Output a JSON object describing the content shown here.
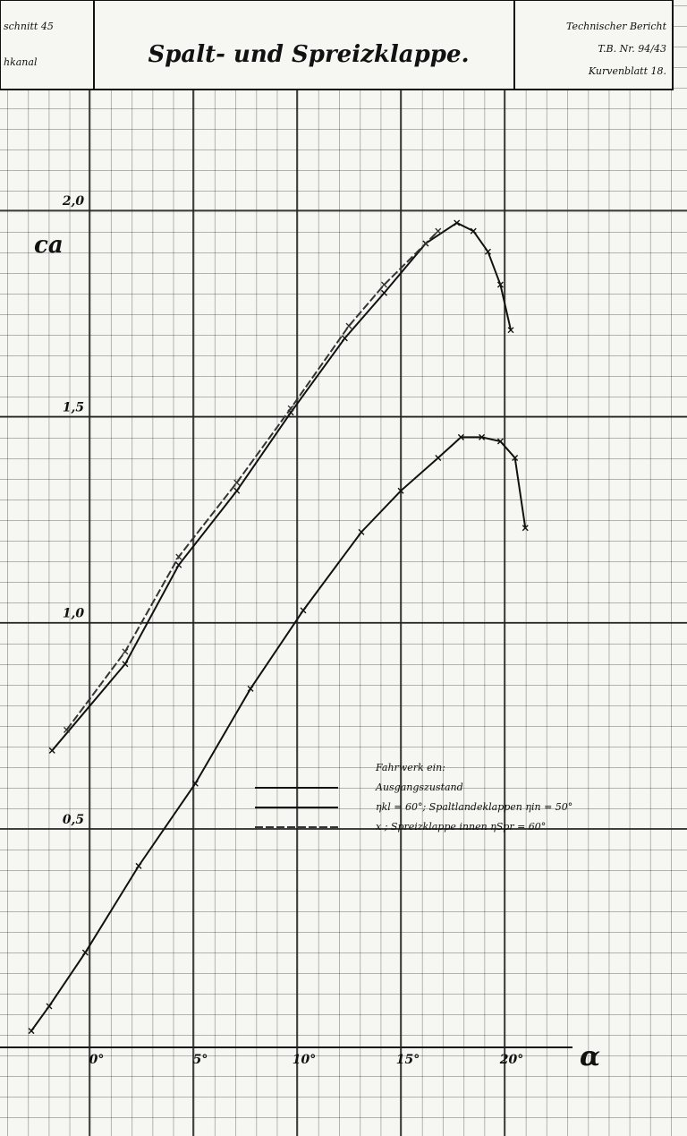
{
  "header": {
    "left": [
      "schnitt 45",
      "hkanal"
    ],
    "right": [
      "Technischer Bericht",
      "T.B. Nr. 94/43",
      "Kurvenblatt 18."
    ]
  },
  "chart_data": {
    "type": "line",
    "title": "Spalt- und Spreizklappe.",
    "y_label": "ca",
    "x_label": "α",
    "xlim": [
      -4.31,
      28.79
    ],
    "ylim": [
      -0.03,
      2.25
    ],
    "xticks": [
      {
        "value": 0,
        "label": "0°"
      },
      {
        "value": 5,
        "label": "5°"
      },
      {
        "value": 10,
        "label": "10°"
      },
      {
        "value": 15,
        "label": "15°"
      },
      {
        "value": 20,
        "label": "20°"
      }
    ],
    "yticks": [
      {
        "value": 0.5,
        "label": "0,5"
      },
      {
        "value": 1.0,
        "label": "1,0"
      },
      {
        "value": 1.5,
        "label": "1,5"
      },
      {
        "value": 2.0,
        "label": "2,0"
      }
    ],
    "grid": true,
    "legend_title": "Fahrwerk ein:",
    "series": [
      {
        "name": "Ausgangszustand",
        "color": "#111111",
        "x": [
          -2.8,
          -1.94,
          -0.2,
          2.37,
          5.1,
          7.76,
          10.3,
          13.1,
          15.0,
          16.8,
          17.9,
          18.9,
          19.8,
          20.5,
          21.0
        ],
        "values": [
          0.01,
          0.07,
          0.2,
          0.41,
          0.61,
          0.84,
          1.03,
          1.22,
          1.32,
          1.4,
          1.45,
          1.45,
          1.44,
          1.4,
          1.23
        ]
      },
      {
        "name": "ηkl = 60°; Spaltlandeklappen ηin = 50°",
        "color": "#111111",
        "x": [
          -1.8,
          1.72,
          4.3,
          7.1,
          9.7,
          12.3,
          14.2,
          16.2,
          17.7,
          18.5,
          19.2,
          19.8,
          20.3
        ],
        "values": [
          0.69,
          0.9,
          1.14,
          1.32,
          1.51,
          1.69,
          1.8,
          1.92,
          1.97,
          1.95,
          1.9,
          1.82,
          1.71
        ]
      },
      {
        "name": "x ; Spreizklappe innen ηSpr = 60°",
        "color": "#333333",
        "x": [
          -1.1,
          1.72,
          4.3,
          7.1,
          9.7,
          12.5,
          14.2,
          16.8
        ],
        "values": [
          0.74,
          0.93,
          1.16,
          1.34,
          1.52,
          1.72,
          1.82,
          1.95
        ]
      }
    ]
  }
}
